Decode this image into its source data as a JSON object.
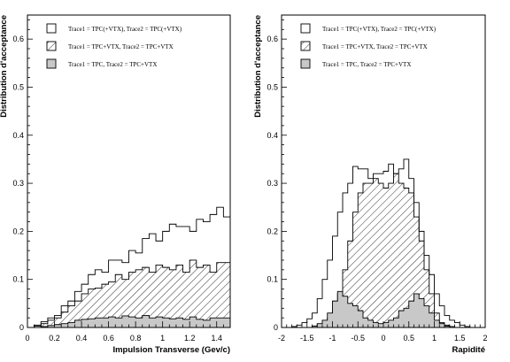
{
  "chart_data": [
    {
      "type": "histogram",
      "xlabel": "Impulsion Transverse (Gev/c)",
      "ylabel": "Distribution d'acceptance",
      "xlim": [
        0,
        1.5
      ],
      "ylim": [
        0,
        0.65
      ],
      "xticks": [
        "0",
        "0.2",
        "0.4",
        "0.6",
        "0.8",
        "1",
        "1.2",
        "1.4"
      ],
      "xtick_values": [
        0,
        0.2,
        0.4,
        0.6,
        0.8,
        1.0,
        1.2,
        1.4
      ],
      "yticks": [
        "0",
        "0.1",
        "0.2",
        "0.3",
        "0.4",
        "0.5",
        "0.6"
      ],
      "ytick_values": [
        0,
        0.1,
        0.2,
        0.3,
        0.4,
        0.5,
        0.6
      ],
      "legend": [
        {
          "label": "Trace1 = TPC(+VTX), Trace2 = TPC(+VTX)",
          "style": "open"
        },
        {
          "label": "Trace1 = TPC+VTX, Trace2 = TPC+VTX",
          "style": "hatched"
        },
        {
          "label": "Trace1 = TPC, Trace2 = TPC+VTX",
          "style": "gray"
        }
      ],
      "series": [
        {
          "style": "open",
          "x_edges": [
            0,
            0.05,
            0.1,
            0.15,
            0.2,
            0.25,
            0.3,
            0.35,
            0.4,
            0.45,
            0.5,
            0.55,
            0.6,
            0.65,
            0.7,
            0.75,
            0.8,
            0.85,
            0.9,
            0.95,
            1.0,
            1.05,
            1.1,
            1.15,
            1.2,
            1.25,
            1.3,
            1.35,
            1.4,
            1.45,
            1.5
          ],
          "values": [
            0.0,
            0.005,
            0.012,
            0.02,
            0.025,
            0.045,
            0.055,
            0.075,
            0.09,
            0.11,
            0.12,
            0.115,
            0.14,
            0.14,
            0.135,
            0.16,
            0.155,
            0.185,
            0.195,
            0.18,
            0.2,
            0.215,
            0.21,
            0.21,
            0.2,
            0.225,
            0.22,
            0.235,
            0.25,
            0.23
          ]
        },
        {
          "style": "hatched",
          "x_edges": [
            0,
            0.05,
            0.1,
            0.15,
            0.2,
            0.25,
            0.3,
            0.35,
            0.4,
            0.45,
            0.5,
            0.55,
            0.6,
            0.65,
            0.7,
            0.75,
            0.8,
            0.85,
            0.9,
            0.95,
            1.0,
            1.05,
            1.1,
            1.15,
            1.2,
            1.25,
            1.3,
            1.35,
            1.4,
            1.45,
            1.5
          ],
          "values": [
            0.0,
            0.003,
            0.008,
            0.015,
            0.02,
            0.032,
            0.045,
            0.055,
            0.07,
            0.08,
            0.082,
            0.09,
            0.095,
            0.11,
            0.1,
            0.115,
            0.12,
            0.125,
            0.115,
            0.13,
            0.125,
            0.12,
            0.13,
            0.115,
            0.14,
            0.125,
            0.13,
            0.115,
            0.135,
            0.135
          ]
        },
        {
          "style": "gray",
          "x_edges": [
            0,
            0.05,
            0.1,
            0.15,
            0.2,
            0.25,
            0.3,
            0.35,
            0.4,
            0.45,
            0.5,
            0.55,
            0.6,
            0.65,
            0.7,
            0.75,
            0.8,
            0.85,
            0.9,
            0.95,
            1.0,
            1.05,
            1.1,
            1.15,
            1.2,
            1.25,
            1.3,
            1.35,
            1.4,
            1.45,
            1.5
          ],
          "values": [
            0.0,
            0.0,
            0.002,
            0.004,
            0.006,
            0.008,
            0.01,
            0.015,
            0.017,
            0.018,
            0.02,
            0.02,
            0.022,
            0.02,
            0.024,
            0.022,
            0.02,
            0.025,
            0.02,
            0.022,
            0.02,
            0.018,
            0.02,
            0.017,
            0.022,
            0.017,
            0.015,
            0.02,
            0.02,
            0.02
          ]
        }
      ]
    },
    {
      "type": "histogram",
      "xlabel": "Rapidité",
      "ylabel": "Distribution d'acceptance",
      "xlim": [
        -2,
        2
      ],
      "ylim": [
        0,
        0.65
      ],
      "xticks": [
        "-2",
        "-1.5",
        "-1",
        "-0.5",
        "0",
        "0.5",
        "1",
        "1.5",
        "2"
      ],
      "xtick_values": [
        -2,
        -1.5,
        -1,
        -0.5,
        0,
        0.5,
        1,
        1.5,
        2
      ],
      "yticks": [
        "0",
        "0.1",
        "0.2",
        "0.3",
        "0.4",
        "0.5",
        "0.6"
      ],
      "ytick_values": [
        0,
        0.1,
        0.2,
        0.3,
        0.4,
        0.5,
        0.6
      ],
      "legend": [
        {
          "label": "Trace1 = TPC(+VTX), Trace2 = TPC(+VTX)",
          "style": "open"
        },
        {
          "label": "Trace1 = TPC+VTX, Trace2 = TPC+VTX",
          "style": "hatched"
        },
        {
          "label": "Trace1 = TPC, Trace2 = TPC+VTX",
          "style": "gray"
        }
      ],
      "series": [
        {
          "style": "open",
          "x_edges": [
            -2,
            -1.9,
            -1.8,
            -1.7,
            -1.6,
            -1.5,
            -1.4,
            -1.3,
            -1.2,
            -1.1,
            -1.0,
            -0.9,
            -0.8,
            -0.7,
            -0.6,
            -0.5,
            -0.4,
            -0.3,
            -0.2,
            -0.1,
            0.0,
            0.1,
            0.2,
            0.3,
            0.4,
            0.5,
            0.6,
            0.7,
            0.8,
            0.9,
            1.0,
            1.1,
            1.2,
            1.3,
            1.4,
            1.5,
            1.6,
            1.7,
            1.8,
            1.9,
            2.0
          ],
          "values": [
            0,
            0,
            0.002,
            0.005,
            0.01,
            0.018,
            0.03,
            0.06,
            0.1,
            0.14,
            0.19,
            0.24,
            0.28,
            0.3,
            0.335,
            0.33,
            0.33,
            0.31,
            0.32,
            0.32,
            0.325,
            0.34,
            0.32,
            0.33,
            0.35,
            0.31,
            0.26,
            0.2,
            0.15,
            0.11,
            0.07,
            0.045,
            0.025,
            0.015,
            0.01,
            0.005,
            0.002,
            0,
            0,
            0
          ]
        },
        {
          "style": "hatched",
          "x_edges": [
            -2,
            -1.9,
            -1.8,
            -1.7,
            -1.6,
            -1.5,
            -1.4,
            -1.3,
            -1.2,
            -1.1,
            -1.0,
            -0.9,
            -0.8,
            -0.7,
            -0.6,
            -0.5,
            -0.4,
            -0.3,
            -0.2,
            -0.1,
            0.0,
            0.1,
            0.2,
            0.3,
            0.4,
            0.5,
            0.6,
            0.7,
            0.8,
            0.9,
            1.0,
            1.1,
            1.2,
            1.3,
            1.4,
            1.5,
            1.6,
            1.7,
            1.8,
            1.9,
            2.0
          ],
          "values": [
            0,
            0,
            0,
            0,
            0,
            0,
            0.002,
            0.005,
            0.01,
            0.02,
            0.04,
            0.07,
            0.12,
            0.18,
            0.24,
            0.28,
            0.3,
            0.3,
            0.31,
            0.3,
            0.29,
            0.3,
            0.32,
            0.3,
            0.29,
            0.28,
            0.23,
            0.18,
            0.12,
            0.07,
            0.03,
            0.01,
            0.005,
            0.002,
            0,
            0,
            0,
            0,
            0,
            0
          ]
        },
        {
          "style": "gray",
          "x_edges": [
            -2,
            -1.9,
            -1.8,
            -1.7,
            -1.6,
            -1.5,
            -1.4,
            -1.3,
            -1.2,
            -1.1,
            -1.0,
            -0.9,
            -0.8,
            -0.7,
            -0.6,
            -0.5,
            -0.4,
            -0.3,
            -0.2,
            -0.1,
            0.0,
            0.1,
            0.2,
            0.3,
            0.4,
            0.5,
            0.6,
            0.7,
            0.8,
            0.9,
            1.0,
            1.1,
            1.2,
            1.3,
            1.4,
            1.5,
            1.6,
            1.7,
            1.8,
            1.9,
            2.0
          ],
          "values": [
            0,
            0,
            0,
            0,
            0,
            0,
            0.003,
            0.008,
            0.015,
            0.03,
            0.055,
            0.075,
            0.065,
            0.05,
            0.045,
            0.035,
            0.02,
            0.015,
            0.01,
            0.008,
            0.01,
            0.015,
            0.02,
            0.035,
            0.04,
            0.055,
            0.07,
            0.06,
            0.045,
            0.03,
            0.015,
            0.008,
            0.003,
            0,
            0,
            0,
            0,
            0,
            0,
            0
          ]
        }
      ]
    }
  ],
  "colors": {
    "gray_fill": "#c8c8c8",
    "line": "#000000",
    "background": "#ffffff"
  }
}
